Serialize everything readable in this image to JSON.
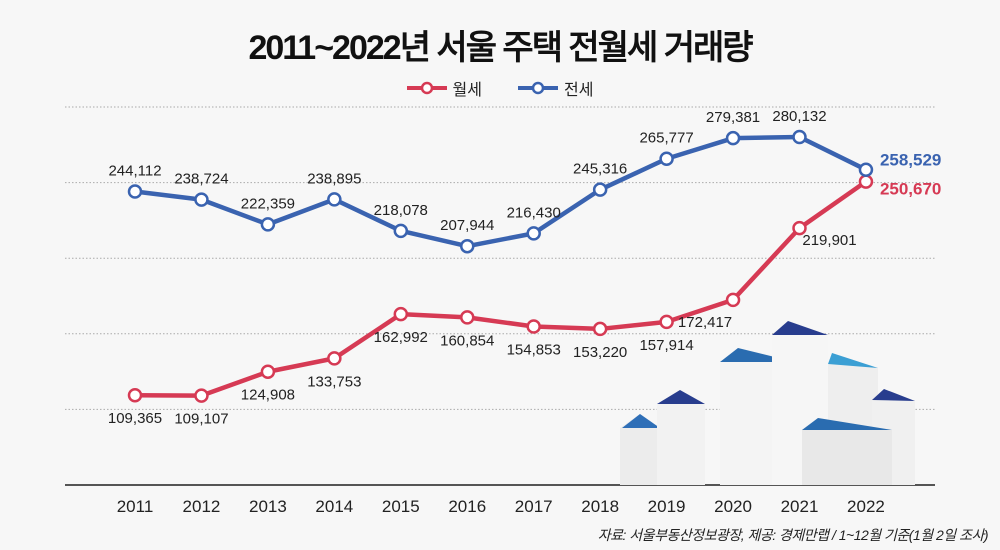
{
  "chart_data": {
    "type": "line",
    "title": "2011~2022년 서울 주택 전월세 거래량",
    "categories": [
      "2011",
      "2012",
      "2013",
      "2014",
      "2015",
      "2016",
      "2017",
      "2018",
      "2019",
      "2020",
      "2021",
      "2022"
    ],
    "series": [
      {
        "name": "월세",
        "color": "#d63a54",
        "values": [
          109365,
          109107,
          124908,
          133753,
          162992,
          160854,
          154853,
          153220,
          157914,
          172417,
          219901,
          250670
        ],
        "labels": [
          "109,365",
          "109,107",
          "124,908",
          "133,753",
          "162,992",
          "160,854",
          "154,853",
          "153,220",
          "157,914",
          "172,417",
          "219,901",
          "250,670"
        ]
      },
      {
        "name": "전세",
        "color": "#3a63b0",
        "values": [
          244112,
          238724,
          222359,
          238895,
          218078,
          207944,
          216430,
          245316,
          265777,
          279381,
          280132,
          258529
        ],
        "labels": [
          "244,112",
          "238,724",
          "222,359",
          "238,895",
          "218,078",
          "207,944",
          "216,430",
          "245,316",
          "265,777",
          "279,381",
          "280,132",
          "258,529"
        ]
      }
    ],
    "ylim": [
      50000,
      300000
    ],
    "grid": true,
    "legend_position": "top-center",
    "source": "자료: 서울부동산정보광장, 제공: 경제만랩  / 1~12월 기준(1월 2일 조사)"
  }
}
